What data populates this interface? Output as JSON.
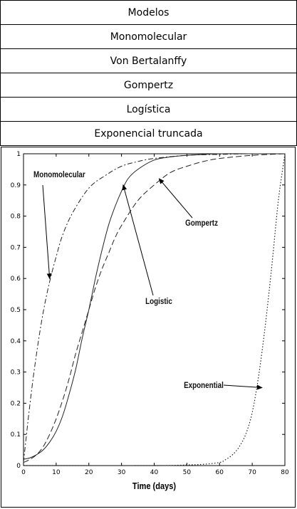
{
  "table": {
    "header": "Modelos",
    "rows": [
      "Monomolecular",
      "Von Bertalanffy",
      "Gompertz",
      "Logística",
      "Exponencial truncada"
    ]
  },
  "chart_data": {
    "type": "line",
    "xlabel": "Time (days)",
    "ylabel": "",
    "xlim": [
      0,
      80
    ],
    "ylim": [
      0,
      1
    ],
    "xticks": [
      0,
      10,
      20,
      30,
      40,
      50,
      60,
      70,
      80
    ],
    "yticks": [
      0,
      0.1,
      0.2,
      0.3,
      0.4,
      0.5,
      0.6,
      0.7,
      0.8,
      0.9,
      1
    ],
    "grid": false,
    "legend": "none",
    "series": [
      {
        "name": "Monomolecular",
        "style": "dash-dot",
        "x": [
          0,
          2,
          4,
          6,
          8,
          10,
          12,
          15,
          20,
          25,
          30,
          35,
          40,
          50,
          60,
          70,
          80
        ],
        "y": [
          0.01,
          0.2,
          0.36,
          0.49,
          0.59,
          0.67,
          0.74,
          0.81,
          0.89,
          0.93,
          0.96,
          0.975,
          0.985,
          0.995,
          0.998,
          1.0,
          1.0
        ]
      },
      {
        "name": "Logistic",
        "style": "solid",
        "x": [
          0,
          2,
          4,
          6,
          8,
          10,
          12,
          14,
          16,
          18,
          20,
          22,
          24,
          26,
          28,
          30,
          32,
          35,
          40,
          45,
          50,
          60,
          70,
          80
        ],
        "y": [
          0.02,
          0.025,
          0.035,
          0.05,
          0.075,
          0.11,
          0.16,
          0.23,
          0.31,
          0.41,
          0.5,
          0.6,
          0.69,
          0.77,
          0.83,
          0.88,
          0.92,
          0.95,
          0.98,
          0.99,
          0.995,
          1.0,
          1.0,
          1.0
        ]
      },
      {
        "name": "Gompertz",
        "style": "dashed",
        "x": [
          0,
          2,
          4,
          6,
          8,
          10,
          12,
          14,
          16,
          18,
          20,
          22,
          24,
          26,
          28,
          30,
          35,
          40,
          45,
          50,
          55,
          60,
          70,
          80
        ],
        "y": [
          0.01,
          0.02,
          0.035,
          0.06,
          0.1,
          0.15,
          0.21,
          0.28,
          0.36,
          0.43,
          0.5,
          0.57,
          0.63,
          0.68,
          0.73,
          0.77,
          0.85,
          0.9,
          0.94,
          0.96,
          0.975,
          0.985,
          0.995,
          1.0
        ]
      },
      {
        "name": "Exponential",
        "style": "dotted",
        "x": [
          0,
          40,
          50,
          55,
          60,
          62,
          64,
          66,
          68,
          70,
          72,
          74,
          76,
          78,
          80
        ],
        "y": [
          0,
          0,
          0.002,
          0.004,
          0.01,
          0.02,
          0.035,
          0.06,
          0.1,
          0.17,
          0.29,
          0.45,
          0.64,
          0.85,
          1.0
        ]
      }
    ],
    "annotations": [
      {
        "text": "Monomolecular",
        "arrow_to": [
          8,
          0.6
        ]
      },
      {
        "text": "Logistic",
        "arrow_to": [
          30.5,
          0.9
        ]
      },
      {
        "text": "Gompertz",
        "arrow_to": [
          41.5,
          0.92
        ]
      },
      {
        "text": "Exponential",
        "arrow_to": [
          73,
          0.25
        ]
      }
    ]
  }
}
